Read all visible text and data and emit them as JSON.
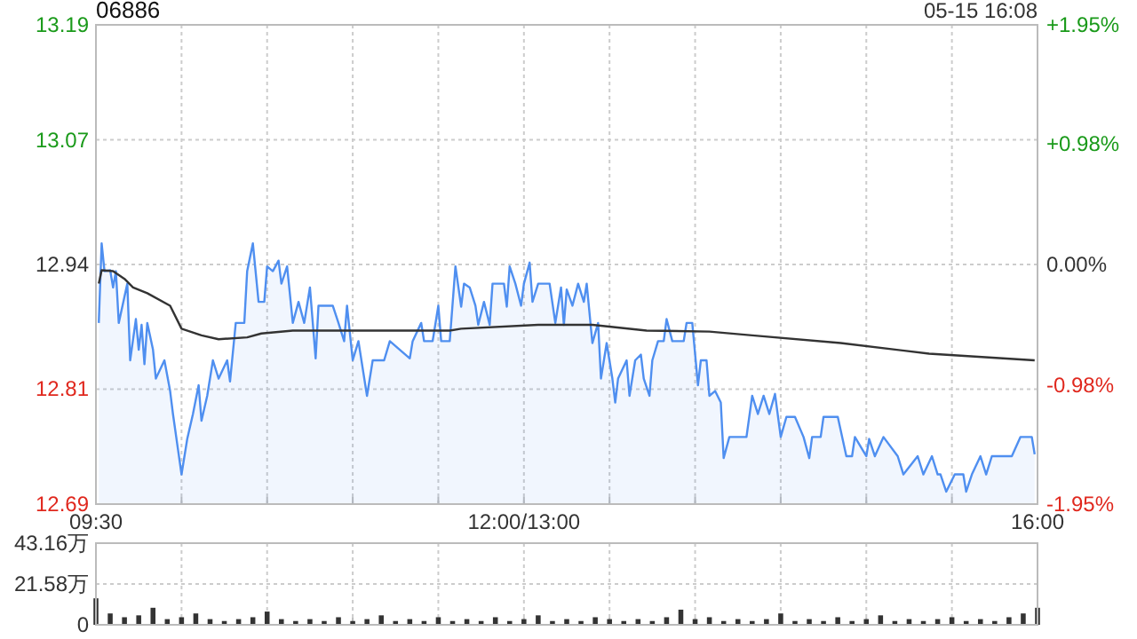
{
  "chart_data": [
    {
      "type": "area",
      "title": "06886",
      "annotations": [
        "05-15 16:08"
      ],
      "grid": true,
      "categories": [
        "09:30",
        null,
        null,
        null,
        null,
        null,
        null,
        null,
        null,
        null,
        null,
        null,
        null,
        null,
        null,
        null,
        null,
        null,
        null,
        null,
        null,
        null,
        null,
        null,
        null,
        null,
        null,
        null,
        null,
        null,
        null,
        null,
        null,
        null,
        null,
        null,
        null,
        null,
        null,
        null,
        null,
        null,
        null,
        null,
        null,
        null,
        null,
        null,
        null,
        null,
        null,
        null,
        null,
        null,
        null,
        null,
        null,
        null,
        null,
        null,
        null,
        null,
        null,
        null,
        null,
        null,
        null,
        null,
        null,
        null,
        null,
        null,
        null,
        null,
        null,
        null,
        null,
        null,
        null,
        null,
        null,
        null,
        null,
        null,
        null,
        null,
        null,
        null,
        null,
        null,
        null,
        null,
        null,
        null,
        null,
        null,
        null,
        null,
        null,
        null,
        null,
        null,
        null,
        null,
        null,
        null,
        null,
        null,
        null,
        null,
        null,
        null,
        null,
        null,
        null,
        null,
        null,
        null,
        null,
        null,
        null,
        null,
        null,
        null,
        null,
        null,
        null,
        null,
        null,
        null,
        null,
        null,
        null,
        null,
        null,
        null,
        null,
        null,
        null,
        null,
        null,
        null,
        null,
        null,
        null,
        null,
        null,
        null,
        null,
        null,
        "12:00/13:00",
        null,
        null,
        null,
        null,
        null,
        null,
        null,
        null,
        null,
        null,
        null,
        null,
        null,
        null,
        null,
        null,
        null,
        null,
        null,
        null,
        null,
        null,
        null,
        null,
        null,
        null,
        null,
        null,
        null,
        null,
        null,
        null,
        null,
        null,
        null,
        null,
        null,
        null,
        null,
        null,
        null,
        null,
        null,
        null,
        null,
        null,
        null,
        null,
        null,
        null,
        null,
        null,
        null,
        null,
        null,
        null,
        null,
        null,
        null,
        null,
        null,
        null,
        null,
        null,
        null,
        null,
        null,
        null,
        null,
        null,
        null,
        null,
        null,
        null,
        null,
        null,
        null,
        null,
        null,
        null,
        null,
        null,
        null,
        null,
        null,
        null,
        null,
        null,
        null,
        null,
        null,
        null,
        null,
        null,
        null,
        null,
        null,
        null,
        null,
        null,
        null,
        null,
        null,
        null,
        null,
        null,
        null,
        null,
        null,
        null,
        null,
        null,
        null,
        null,
        null,
        null,
        null,
        null,
        null,
        null,
        null,
        null,
        null,
        null,
        null,
        null,
        null,
        null,
        null,
        null,
        null,
        null,
        null,
        null,
        null,
        null,
        null,
        null,
        null,
        null,
        null,
        null,
        null,
        null,
        null,
        null,
        null,
        null,
        null,
        null,
        null,
        null,
        null,
        null,
        null,
        null,
        null,
        null,
        null,
        null,
        null,
        null,
        null,
        null,
        null,
        null,
        null,
        null,
        null,
        null,
        null,
        null,
        null,
        null,
        null,
        null,
        null,
        null,
        null,
        "16:00"
      ],
      "ylim": [
        12.69,
        13.19
      ],
      "yticks": [
        12.69,
        12.81,
        12.94,
        13.07,
        13.19
      ],
      "y2lim": [
        -1.95,
        1.95
      ],
      "y2ticks": [
        {
          "value": -1.95,
          "label": "-1.95%"
        },
        {
          "value": -0.98,
          "label": "-0.98%"
        },
        {
          "value": 0,
          "label": "0.00%"
        },
        {
          "value": 0.98,
          "label": "+0.98%"
        },
        {
          "value": 1.95,
          "label": "+1.95%"
        }
      ],
      "series": [
        {
          "color": "#4f8ff0",
          "values": [
            null,
            12.879,
            12.962,
            12.933,
            null,
            12.934,
            12.916,
            12.933,
            12.879,
            null,
            null,
            12.92,
            12.84,
            null,
            12.883,
            12.851,
            12.877,
            12.836,
            12.879,
            null,
            12.851,
            12.821,
            null,
            null,
            12.84,
            null,
            12.808,
            12.784,
            null,
            null,
            12.721,
            null,
            12.758,
            null,
            12.784,
            null,
            12.814,
            12.777,
            null,
            12.803,
            null,
            12.84,
            null,
            12.821,
            null,
            null,
            12.84,
            12.818,
            null,
            12.879,
            null,
            null,
            12.879,
            12.933,
            null,
            12.962,
            null,
            12.901,
            null,
            12.901,
            12.938,
            null,
            12.933,
            null,
            12.944,
            12.92,
            null,
            12.938,
            null,
            12.879,
            null,
            12.901,
            null,
            12.879,
            null,
            12.916,
            null,
            12.842,
            12.897,
            null,
            null,
            null,
            null,
            12.897,
            null,
            12.879,
            null,
            12.86,
            12.897,
            null,
            12.84,
            null,
            12.86,
            null,
            null,
            12.803,
            null,
            12.84,
            null,
            null,
            null,
            12.84,
            null,
            12.86,
            null,
            null,
            null,
            null,
            null,
            null,
            12.842,
            12.86,
            null,
            null,
            12.879,
            12.86,
            null,
            null,
            12.86,
            null,
            12.897,
            12.86,
            null,
            null,
            12.86,
            null,
            12.938,
            null,
            12.896,
            12.92,
            null,
            12.916,
            null,
            12.897,
            12.877,
            null,
            12.901,
            null,
            12.877,
            12.92,
            null,
            null,
            null,
            12.92,
            12.896,
            12.938,
            null,
            12.92,
            null,
            12.897,
            12.92,
            null,
            12.942,
            12.901,
            null,
            12.92,
            null,
            null,
            null,
            12.92,
            null,
            12.879,
            null,
            12.916,
            12.877,
            12.914,
            null,
            12.897,
            null,
            12.92,
            null,
            12.901,
            12.92,
            null,
            12.858,
            null,
            12.879,
            12.821,
            null,
            12.858,
            null,
            12.821,
            12.796,
            12.821,
            null,
            null,
            12.84,
            12.803,
            null,
            12.84,
            null,
            12.846,
            12.821,
            null,
            12.803,
            12.84,
            null,
            12.86,
            null,
            12.86,
            12.883,
            null,
            12.86,
            null,
            null,
            null,
            12.86,
            12.879,
            null,
            12.879,
            null,
            12.814,
            12.84,
            null,
            12.84,
            12.803,
            null,
            12.808,
            null,
            12.796,
            12.738,
            null,
            12.76,
            null,
            null,
            null,
            null,
            null,
            12.76,
            null,
            12.803,
            null,
            12.784,
            null,
            12.803,
            null,
            12.784,
            null,
            12.805,
            null,
            12.76,
            null,
            12.781,
            null,
            null,
            12.781,
            null,
            null,
            12.76,
            null,
            12.738,
            12.76,
            null,
            null,
            12.76,
            12.781,
            null,
            null,
            null,
            null,
            12.781,
            null,
            null,
            12.74,
            null,
            12.74,
            12.76,
            null,
            null,
            null,
            12.74,
            12.758,
            null,
            12.74,
            null,
            null,
            12.76,
            null,
            null,
            null,
            null,
            12.74,
            null,
            12.721,
            null,
            null,
            null,
            null,
            12.74,
            null,
            12.721,
            null,
            null,
            12.74,
            null,
            12.721,
            12.721,
            null,
            12.703,
            null,
            null,
            12.721,
            null,
            null,
            12.721,
            12.703,
            null,
            12.721,
            null,
            null,
            12.74,
            null,
            12.721,
            null,
            12.74,
            null,
            null,
            null,
            null,
            12.74,
            null,
            12.74,
            null,
            null,
            12.76,
            null,
            null,
            null,
            12.76,
            12.742,
            null
          ]
        },
        {
          "type": "line",
          "color": "#333333",
          "values": [
            null,
            12.92,
            12.934,
            null,
            null,
            null,
            12.933,
            null,
            null,
            null,
            12.925,
            null,
            null,
            12.916,
            null,
            null,
            null,
            null,
            12.91,
            null,
            null,
            null,
            null,
            null,
            null,
            null,
            12.897,
            null,
            null,
            null,
            12.873,
            null,
            null,
            null,
            null,
            null,
            null,
            12.866,
            null,
            null,
            null,
            null,
            null,
            12.862,
            null,
            null,
            null,
            null,
            null,
            null,
            null,
            null,
            null,
            12.864,
            null,
            null,
            null,
            null,
            12.868,
            null,
            null,
            null,
            null,
            null,
            null,
            null,
            null,
            null,
            null,
            12.871,
            null,
            null,
            null,
            null,
            null,
            null,
            null,
            null,
            null,
            null,
            null,
            null,
            null,
            null,
            null,
            null,
            null,
            null,
            null,
            null,
            null,
            12.871,
            null,
            null,
            null,
            null,
            null,
            null,
            null,
            null,
            null,
            null,
            null,
            null,
            null,
            null,
            null,
            null,
            null,
            null,
            12.871,
            null,
            null,
            null,
            null,
            null,
            null,
            null,
            null,
            null,
            null,
            null,
            null,
            null,
            12.871,
            null,
            null,
            null,
            12.873,
            null,
            null,
            null,
            null,
            null,
            null,
            null,
            null,
            null,
            null,
            null,
            null,
            null,
            null,
            null,
            null,
            null,
            null,
            null,
            null,
            null,
            null,
            null,
            null,
            null,
            null,
            12.877,
            null,
            null,
            null,
            null,
            null,
            null,
            null,
            null,
            null,
            null,
            null,
            null,
            null,
            null,
            null,
            null,
            null,
            null,
            12.877,
            null,
            null,
            null,
            null,
            null,
            null,
            null,
            null,
            null,
            null,
            null,
            null,
            null,
            null,
            null,
            null,
            null,
            null,
            12.871,
            null,
            null,
            null,
            null,
            null,
            null,
            null,
            null,
            null,
            null,
            null,
            null,
            null,
            null,
            null,
            null,
            null,
            null,
            null,
            null,
            null,
            12.87,
            null,
            null,
            null,
            null,
            null,
            null,
            null,
            null,
            null,
            null,
            null,
            null,
            null,
            null,
            12.866,
            null,
            null,
            null,
            null,
            null,
            null,
            null,
            null,
            null,
            null,
            null,
            null,
            null,
            null,
            null,
            null,
            null,
            null,
            null,
            null,
            null,
            null,
            null,
            null,
            null,
            null,
            null,
            null,
            null,
            null,
            12.858,
            null,
            null,
            null,
            null,
            null,
            null,
            null,
            null,
            null,
            null,
            null,
            null,
            null,
            null,
            null,
            null,
            null,
            null,
            null,
            null,
            null,
            null,
            null,
            null,
            null,
            null,
            null,
            null,
            null,
            null,
            12.847,
            null,
            null,
            null,
            null,
            null,
            null,
            null,
            null,
            null,
            null,
            null,
            null,
            null,
            null,
            null,
            null,
            null,
            null,
            null,
            null,
            null,
            null,
            null,
            null,
            null,
            null,
            null,
            null,
            null,
            null,
            null,
            null,
            null,
            null,
            null,
            null,
            12.84,
            null
          ]
        }
      ]
    },
    {
      "type": "bar",
      "grid": true,
      "tick_labels": "y",
      "color": "#333333",
      "categories": [
        null,
        null,
        null,
        null,
        null,
        null,
        null,
        null,
        null,
        null,
        null,
        null,
        null,
        null,
        null,
        null,
        null,
        null,
        null,
        null,
        null,
        null,
        null,
        null,
        null,
        null,
        null,
        null,
        null,
        null,
        null,
        null,
        null,
        null,
        null,
        null,
        null,
        null,
        null,
        null,
        null,
        null,
        null,
        null,
        null,
        null,
        null,
        null,
        null,
        null,
        null,
        null,
        null,
        null,
        null,
        null,
        null,
        null,
        null,
        null,
        null,
        null,
        null,
        null,
        null,
        null,
        null
      ],
      "ylim": [
        0,
        43.16
      ],
      "yticks": [
        0,
        {
          "value": 21.58,
          "label": "21.58万"
        },
        {
          "value": 43.16,
          "label": "43.16万"
        }
      ],
      "values": [
        14,
        6,
        4,
        5,
        9,
        3,
        4,
        6,
        3,
        2,
        3,
        4,
        7,
        3,
        2,
        3,
        2,
        4,
        2,
        3,
        5,
        2,
        3,
        2,
        4,
        2,
        3,
        2,
        4,
        2,
        3,
        5,
        2,
        3,
        2,
        4,
        3,
        2,
        3,
        2,
        4,
        8,
        3,
        4,
        2,
        3,
        2,
        3,
        6,
        2,
        3,
        2,
        4,
        2,
        3,
        5,
        2,
        3,
        2,
        3,
        4,
        2,
        3,
        2,
        4,
        6,
        9
      ]
    }
  ]
}
